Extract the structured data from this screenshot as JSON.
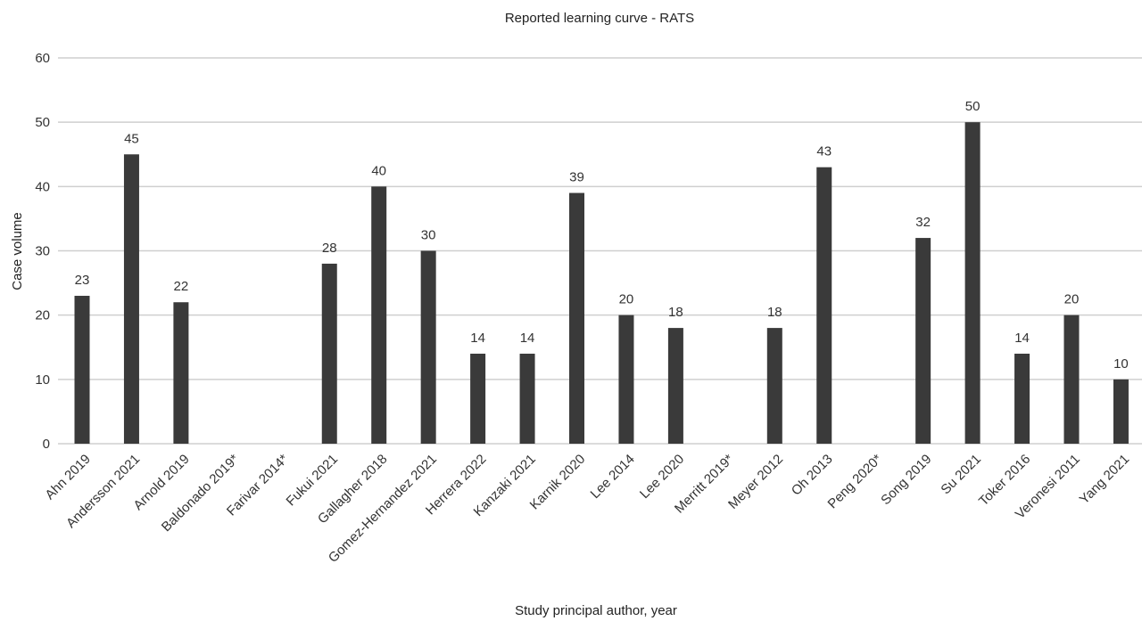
{
  "chart_data": {
    "type": "bar",
    "title": "Reported learning curve - RATS",
    "xlabel": "Study principal author, year",
    "ylabel": "Case volume",
    "ylim": [
      0,
      60
    ],
    "yticks": [
      0,
      10,
      20,
      30,
      40,
      50,
      60
    ],
    "grid": true,
    "legend": "none",
    "bar_color": "#3a3a3a",
    "categories": [
      "Ahn 2019",
      "Andersson 2021",
      "Arnold 2019",
      "Baldonado 2019*",
      "Farivar 2014*",
      "Fukui 2021",
      "Gallagher 2018",
      "Gomez-Hernandez 2021",
      "Herrera 2022",
      "Kanzaki 2021",
      "Karnik 2020",
      "Lee 2014",
      "Lee 2020",
      "Merritt 2019*",
      "Meyer 2012",
      "Oh 2013",
      "Peng 2020*",
      "Song 2019",
      "Su 2021",
      "Toker 2016",
      "Veronesi 2011",
      "Yang 2021"
    ],
    "values": [
      23,
      45,
      22,
      null,
      null,
      28,
      40,
      30,
      14,
      14,
      39,
      20,
      18,
      null,
      18,
      43,
      null,
      32,
      50,
      14,
      20,
      10
    ],
    "value_labels": [
      "23",
      "45",
      "22",
      "",
      "",
      "28",
      "40",
      "30",
      "14",
      "14",
      "39",
      "20",
      "18",
      "",
      "18",
      "43",
      "",
      "32",
      "50",
      "14",
      "20",
      "10"
    ]
  }
}
